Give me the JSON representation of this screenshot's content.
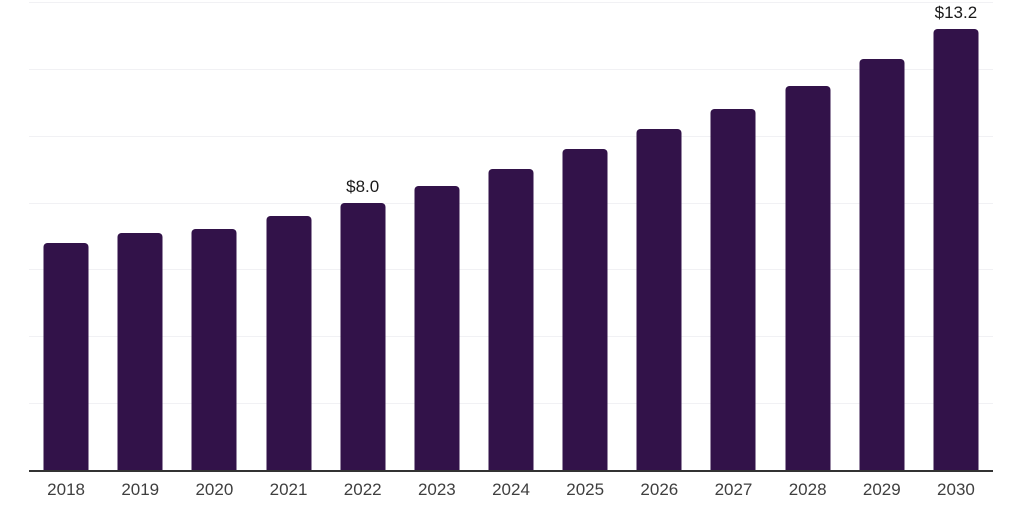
{
  "chart_data": {
    "type": "bar",
    "title": "",
    "xlabel": "",
    "ylabel": "",
    "categories": [
      "2018",
      "2019",
      "2020",
      "2021",
      "2022",
      "2023",
      "2024",
      "2025",
      "2026",
      "2027",
      "2028",
      "2029",
      "2030"
    ],
    "values": [
      6.8,
      7.1,
      7.2,
      7.6,
      8.0,
      8.5,
      9.0,
      9.6,
      10.2,
      10.8,
      11.5,
      12.3,
      13.2
    ],
    "bar_labels": [
      "",
      "",
      "",
      "",
      "$8.0",
      "",
      "",
      "",
      "",
      "",
      "",
      "",
      "$13.2"
    ],
    "value_prefix": "$",
    "ylim": [
      0,
      14
    ],
    "gridline_step": 2,
    "y_tick_labels_visible": false,
    "grid": "horizontal",
    "legend": "none",
    "colors": {
      "bar": "#321249",
      "gridline": "#f1f1f4",
      "axis_line": "#333333",
      "bar_label_text": "#1a1a1a",
      "x_tick_text": "#3f3f3f",
      "background": "#ffffff"
    }
  }
}
